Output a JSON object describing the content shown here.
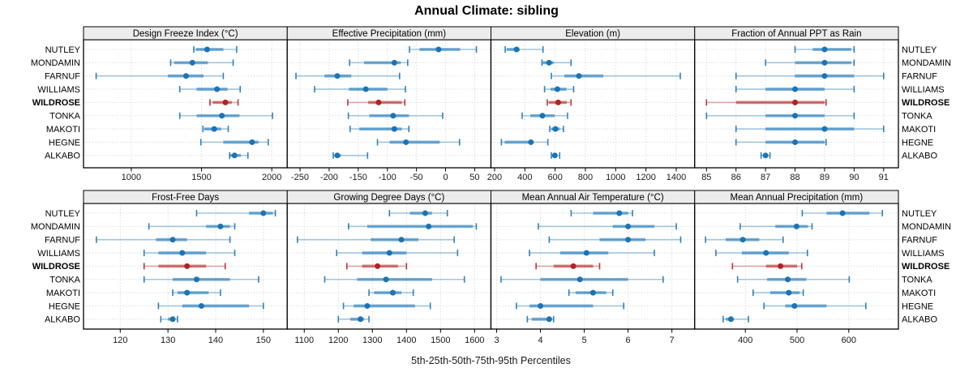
{
  "title": "Annual Climate: sibling",
  "caption": "5th-25th-50th-75th-95th Percentiles",
  "percentile_levels": [
    5,
    25,
    50,
    75,
    95
  ],
  "sites": [
    "NUTLEY",
    "MONDAMIN",
    "FARNUF",
    "WILLIAMS",
    "WILDROSE",
    "TONKA",
    "MAKOTI",
    "HEGNE",
    "ALKABO"
  ],
  "highlight_site": "WILDROSE",
  "colors": {
    "series": "#1a74b6",
    "highlight": "#b22222",
    "strip_bg": "#ececec",
    "panel_border": "#000000",
    "grid": "#cfcfcf",
    "text": "#000000"
  },
  "chart_data": [
    {
      "type": "scatter",
      "subtype": "percentile-dotplot",
      "title": "Design Freeze Index (°C)",
      "row": 0,
      "col": 0,
      "xlim": [
        660,
        2110
      ],
      "xticks": [
        1000,
        1500,
        2000
      ],
      "series": [
        {
          "name": "NUTLEY",
          "percentiles": [
            1445,
            1460,
            1540,
            1655,
            1750
          ]
        },
        {
          "name": "MONDAMIN",
          "percentiles": [
            1280,
            1305,
            1435,
            1545,
            1725
          ]
        },
        {
          "name": "FARNUF",
          "percentiles": [
            750,
            1260,
            1390,
            1515,
            1655
          ]
        },
        {
          "name": "WILLIAMS",
          "percentiles": [
            1345,
            1465,
            1610,
            1685,
            1775
          ]
        },
        {
          "name": "WILDROSE",
          "percentiles": [
            1560,
            1580,
            1670,
            1715,
            1760
          ]
        },
        {
          "name": "TONKA",
          "percentiles": [
            1345,
            1465,
            1645,
            1770,
            2005
          ]
        },
        {
          "name": "MAKOTI",
          "percentiles": [
            1510,
            1520,
            1590,
            1640,
            1690
          ]
        },
        {
          "name": "HEGNE",
          "percentiles": [
            1495,
            1655,
            1860,
            1905,
            1975
          ]
        },
        {
          "name": "ALKABO",
          "percentiles": [
            1700,
            1705,
            1735,
            1780,
            1830
          ]
        }
      ]
    },
    {
      "type": "scatter",
      "subtype": "percentile-dotplot",
      "title": "Effective Precipitation (mm)",
      "row": 0,
      "col": 1,
      "xlim": [
        -272,
        78
      ],
      "xticks": [
        -250,
        -200,
        -150,
        -100,
        -50,
        0,
        50
      ],
      "series": [
        {
          "name": "NUTLEY",
          "percentiles": [
            -62,
            -45,
            -12,
            25,
            53
          ]
        },
        {
          "name": "MONDAMIN",
          "percentiles": [
            -165,
            -140,
            -88,
            -77,
            -65
          ]
        },
        {
          "name": "FARNUF",
          "percentiles": [
            -257,
            -208,
            -186,
            -162,
            -79
          ]
        },
        {
          "name": "WILLIAMS",
          "percentiles": [
            -225,
            -166,
            -137,
            -100,
            -69
          ]
        },
        {
          "name": "WILDROSE",
          "percentiles": [
            -168,
            -133,
            -115,
            -75,
            -70
          ]
        },
        {
          "name": "TONKA",
          "percentiles": [
            -167,
            -131,
            -90,
            -63,
            -5
          ]
        },
        {
          "name": "MAKOTI",
          "percentiles": [
            -164,
            -148,
            -88,
            -75,
            -63
          ]
        },
        {
          "name": "HEGNE",
          "percentiles": [
            -117,
            -96,
            -68,
            -10,
            24
          ]
        },
        {
          "name": "ALKABO",
          "percentiles": [
            -193,
            -191,
            -186,
            -180,
            -134
          ]
        }
      ]
    },
    {
      "type": "scatter",
      "subtype": "percentile-dotplot",
      "title": "Elevation (m)",
      "row": 0,
      "col": 2,
      "xlim": [
        176,
        1522
      ],
      "xticks": [
        200,
        400,
        600,
        800,
        1000,
        1200,
        1400
      ],
      "series": [
        {
          "name": "NUTLEY",
          "percentiles": [
            270,
            280,
            345,
            365,
            520
          ]
        },
        {
          "name": "MONDAMIN",
          "percentiles": [
            513,
            518,
            560,
            590,
            705
          ]
        },
        {
          "name": "FARNUF",
          "percentiles": [
            575,
            660,
            757,
            918,
            1427
          ]
        },
        {
          "name": "WILLIAMS",
          "percentiles": [
            530,
            570,
            615,
            675,
            722
          ]
        },
        {
          "name": "WILDROSE",
          "percentiles": [
            548,
            558,
            620,
            677,
            705
          ]
        },
        {
          "name": "TONKA",
          "percentiles": [
            382,
            436,
            516,
            597,
            682
          ]
        },
        {
          "name": "MAKOTI",
          "percentiles": [
            565,
            575,
            602,
            630,
            655
          ]
        },
        {
          "name": "HEGNE",
          "percentiles": [
            245,
            266,
            440,
            455,
            552
          ]
        },
        {
          "name": "ALKABO",
          "percentiles": [
            575,
            585,
            598,
            612,
            630
          ]
        }
      ]
    },
    {
      "type": "scatter",
      "subtype": "percentile-dotplot",
      "title": "Fraction of Annual PPT as Rain",
      "row": 0,
      "col": 3,
      "xlim": [
        84.6,
        91.5
      ],
      "xticks": [
        85,
        86,
        87,
        88,
        89,
        90,
        91
      ],
      "series": [
        {
          "name": "NUTLEY",
          "percentiles": [
            88,
            88.6,
            89,
            89.9,
            90
          ]
        },
        {
          "name": "MONDAMIN",
          "percentiles": [
            87,
            88,
            89,
            89.9,
            90
          ]
        },
        {
          "name": "FARNUF",
          "percentiles": [
            86,
            88,
            89,
            90,
            91
          ]
        },
        {
          "name": "WILLIAMS",
          "percentiles": [
            86,
            87,
            88,
            89,
            90
          ]
        },
        {
          "name": "WILDROSE",
          "percentiles": [
            85,
            86,
            88,
            89,
            89.05
          ]
        },
        {
          "name": "TONKA",
          "percentiles": [
            85,
            87,
            88,
            89,
            90
          ]
        },
        {
          "name": "MAKOTI",
          "percentiles": [
            86,
            87,
            89,
            90,
            91
          ]
        },
        {
          "name": "HEGNE",
          "percentiles": [
            86,
            87,
            88,
            89,
            89.05
          ]
        },
        {
          "name": "ALKABO",
          "percentiles": [
            86.85,
            86.95,
            87,
            87.05,
            87.15
          ]
        }
      ]
    },
    {
      "type": "scatter",
      "subtype": "percentile-dotplot",
      "title": "Frost-Free Days",
      "row": 1,
      "col": 0,
      "xlim": [
        112.3,
        155
      ],
      "xticks": [
        120,
        130,
        140,
        150
      ],
      "series": [
        {
          "name": "NUTLEY",
          "percentiles": [
            136,
            147,
            150,
            152,
            152.5
          ]
        },
        {
          "name": "MONDAMIN",
          "percentiles": [
            126,
            138,
            141,
            143,
            144
          ]
        },
        {
          "name": "FARNUF",
          "percentiles": [
            115,
            127.5,
            131,
            134,
            143
          ]
        },
        {
          "name": "WILLIAMS",
          "percentiles": [
            125,
            128,
            133,
            138,
            144
          ]
        },
        {
          "name": "WILDROSE",
          "percentiles": [
            125,
            128,
            134,
            138,
            142
          ]
        },
        {
          "name": "TONKA",
          "percentiles": [
            125,
            131,
            136,
            143,
            149
          ]
        },
        {
          "name": "MAKOTI",
          "percentiles": [
            131,
            132,
            134,
            138.5,
            141
          ]
        },
        {
          "name": "HEGNE",
          "percentiles": [
            128,
            133,
            137,
            147,
            150
          ]
        },
        {
          "name": "ALKABO",
          "percentiles": [
            128.5,
            130,
            131,
            131.5,
            132
          ]
        }
      ]
    },
    {
      "type": "scatter",
      "subtype": "percentile-dotplot",
      "title": "Growing Degree Days (°C)",
      "row": 1,
      "col": 1,
      "xlim": [
        1050,
        1648
      ],
      "xticks": [
        1100,
        1200,
        1300,
        1400,
        1500,
        1600
      ],
      "series": [
        {
          "name": "NUTLEY",
          "percentiles": [
            1350,
            1410,
            1455,
            1475,
            1520
          ]
        },
        {
          "name": "MONDAMIN",
          "percentiles": [
            1230,
            1285,
            1465,
            1595,
            1605
          ]
        },
        {
          "name": "FARNUF",
          "percentiles": [
            1080,
            1295,
            1385,
            1435,
            1540
          ]
        },
        {
          "name": "WILLIAMS",
          "percentiles": [
            1195,
            1270,
            1350,
            1400,
            1550
          ]
        },
        {
          "name": "WILDROSE",
          "percentiles": [
            1225,
            1270,
            1315,
            1375,
            1400
          ]
        },
        {
          "name": "TONKA",
          "percentiles": [
            1160,
            1255,
            1340,
            1475,
            1570
          ]
        },
        {
          "name": "MAKOTI",
          "percentiles": [
            1290,
            1305,
            1360,
            1385,
            1420
          ]
        },
        {
          "name": "HEGNE",
          "percentiles": [
            1215,
            1245,
            1285,
            1425,
            1470
          ]
        },
        {
          "name": "ALKABO",
          "percentiles": [
            1200,
            1235,
            1265,
            1275,
            1290
          ]
        }
      ]
    },
    {
      "type": "scatter",
      "subtype": "percentile-dotplot",
      "title": "Mean Annual Air Temperature (°C)",
      "row": 1,
      "col": 2,
      "xlim": [
        2.87,
        7.52
      ],
      "xticks": [
        3,
        4,
        5,
        6,
        7
      ],
      "series": [
        {
          "name": "NUTLEY",
          "percentiles": [
            4.7,
            5.2,
            5.8,
            6.0,
            6.1
          ]
        },
        {
          "name": "MONDAMIN",
          "percentiles": [
            3.95,
            5.65,
            6.0,
            6.6,
            7.1
          ]
        },
        {
          "name": "FARNUF",
          "percentiles": [
            4.2,
            5.35,
            6.0,
            6.4,
            7.2
          ]
        },
        {
          "name": "WILLIAMS",
          "percentiles": [
            3.75,
            4.45,
            5.05,
            5.55,
            6.6
          ]
        },
        {
          "name": "WILDROSE",
          "percentiles": [
            3.9,
            4.3,
            4.75,
            5.2,
            5.35
          ]
        },
        {
          "name": "TONKA",
          "percentiles": [
            3.1,
            4.0,
            4.9,
            6.0,
            6.8
          ]
        },
        {
          "name": "MAKOTI",
          "percentiles": [
            4.65,
            4.8,
            5.2,
            5.5,
            5.65
          ]
        },
        {
          "name": "HEGNE",
          "percentiles": [
            3.45,
            3.75,
            4.0,
            5.2,
            5.9
          ]
        },
        {
          "name": "ALKABO",
          "percentiles": [
            3.7,
            3.8,
            4.2,
            4.25,
            4.3
          ]
        }
      ]
    },
    {
      "type": "scatter",
      "subtype": "percentile-dotplot",
      "title": "Mean Annual Precipitation (mm)",
      "row": 1,
      "col": 3,
      "xlim": [
        302,
        696
      ],
      "xticks": [
        400,
        500,
        600
      ],
      "series": [
        {
          "name": "NUTLEY",
          "percentiles": [
            510,
            557,
            588,
            640,
            665
          ]
        },
        {
          "name": "MONDAMIN",
          "percentiles": [
            390,
            458,
            499,
            521,
            529
          ]
        },
        {
          "name": "FARNUF",
          "percentiles": [
            323,
            362,
            395,
            427,
            473
          ]
        },
        {
          "name": "WILLIAMS",
          "percentiles": [
            343,
            393,
            440,
            484,
            520
          ]
        },
        {
          "name": "WILDROSE",
          "percentiles": [
            375,
            440,
            468,
            500,
            509
          ]
        },
        {
          "name": "TONKA",
          "percentiles": [
            385,
            442,
            482,
            518,
            601
          ]
        },
        {
          "name": "MAKOTI",
          "percentiles": [
            415,
            448,
            484,
            505,
            512
          ]
        },
        {
          "name": "HEGNE",
          "percentiles": [
            436,
            477,
            495,
            557,
            633
          ]
        },
        {
          "name": "ALKABO",
          "percentiles": [
            357,
            362,
            372,
            378,
            406
          ]
        }
      ]
    }
  ]
}
